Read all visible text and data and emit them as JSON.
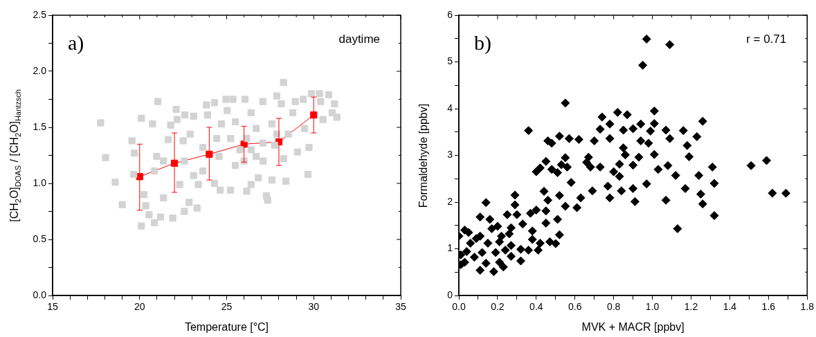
{
  "chart_data": [
    {
      "type": "scatter",
      "title": "a)",
      "xlabel": "Temperature [°C]",
      "ylabel": "[CH$_{2}$O]$_{DOAS}$ / [CH$_{2}$O]$_{Hantzsch}$",
      "annotations": [
        "daytime"
      ],
      "xlim": [
        15,
        35
      ],
      "ylim": [
        0,
        2.5
      ],
      "xticks": [
        15,
        {
          "value": 16,
          "label": null
        },
        {
          "value": 17,
          "label": null
        },
        {
          "value": 18,
          "label": null
        },
        {
          "value": 19,
          "label": null
        },
        20,
        {
          "value": 21,
          "label": null
        },
        {
          "value": 22,
          "label": null
        },
        {
          "value": 23,
          "label": null
        },
        {
          "value": 24,
          "label": null
        },
        25,
        {
          "value": 26,
          "label": null
        },
        {
          "value": 27,
          "label": null
        },
        {
          "value": 28,
          "label": null
        },
        {
          "value": 29,
          "label": null
        },
        30,
        {
          "value": 31,
          "label": null
        },
        {
          "value": 32,
          "label": null
        },
        {
          "value": 33,
          "label": null
        },
        {
          "value": 34,
          "label": null
        },
        35
      ],
      "yticks": [
        {
          "value": 0,
          "label": "0.0"
        },
        {
          "value": 0.25,
          "label": null
        },
        {
          "value": 0.5,
          "label": "0.5"
        },
        {
          "value": 0.75,
          "label": null
        },
        {
          "value": 1,
          "label": "1.0"
        },
        {
          "value": 1.25,
          "label": null
        },
        {
          "value": 1.5,
          "label": "1.5"
        },
        {
          "value": 1.75,
          "label": null
        },
        {
          "value": 2,
          "label": "2.0"
        },
        {
          "value": 2.25,
          "label": null
        },
        {
          "value": 2.5,
          "label": "2.5"
        }
      ],
      "grid": false,
      "legend": false,
      "series": [
        {
          "type": "scatter",
          "marker": "square",
          "color": "#d3d3d3",
          "x": [
            17.76,
            18.04,
            18.6,
            19.0,
            19.56,
            19.7,
            19.66,
            20.1,
            20.1,
            20.54,
            20.85,
            20.35,
            20.25,
            20.74,
            21.05,
            20.98,
            21.2,
            21.37,
            21.9,
            21.78,
            21.64,
            22.1,
            22.15,
            22.3,
            22.6,
            22.57,
            22.84,
            23.1,
            23.3,
            23.37,
            22.9,
            22.5,
            23.63,
            23.84,
            23.9,
            24.3,
            24.43,
            24.56,
            24.3,
            24.63,
            24.96,
            25.36,
            25.22,
            25.03,
            25.5,
            25.23,
            25.5,
            25.76,
            26.05,
            26.15,
            26.4,
            26.4,
            26.7,
            26.82,
            26.7,
            27.08,
            27.08,
            27.28,
            27.35,
            27.6,
            27.88,
            28.27,
            28.14,
            27.6,
            28.27,
            28.4,
            28.54,
            28.94,
            28.8,
            29.07,
            29.47,
            29.67,
            29.73,
            29.4,
            29.87,
            30.33,
            30.86,
            30.4,
            30.53,
            31.2,
            31.06,
            31.33,
            26.15,
            27.75,
            27.1,
            26.0,
            24.7,
            23.63,
            22.57,
            21.37,
            20.85,
            23.1,
            27.88,
            26.4
          ],
          "values": [
            1.54,
            1.23,
            1.01,
            0.81,
            1.38,
            1.27,
            1.08,
            1.58,
            0.62,
            0.72,
            0.65,
            0.8,
            0.9,
            1.53,
            1.73,
            1.24,
            0.7,
            0.87,
            0.69,
            1.52,
            1.39,
            1.66,
            1.57,
            0.99,
            1.61,
            0.75,
            0.83,
            1.6,
            0.78,
            0.99,
            1.44,
            1.38,
            1.32,
            1.7,
            1.61,
            1.72,
            1.4,
            1.24,
            1.0,
            0.94,
            1.75,
            1.75,
            0.94,
            1.65,
            1.55,
            1.4,
            1.16,
            1.3,
            1.75,
            0.93,
            0.99,
            1.63,
            1.49,
            1.05,
            1.24,
            1.73,
            1.36,
            0.89,
            0.85,
            1.03,
            1.78,
            1.9,
            1.71,
            1.53,
            1.22,
            1.02,
            1.44,
            1.73,
            1.63,
            1.28,
            1.49,
            1.08,
            1.32,
            1.75,
            1.8,
            1.8,
            1.79,
            1.73,
            1.57,
            1.71,
            1.63,
            1.59,
            1.4,
            1.34,
            1.2,
            1.2,
            1.53,
            1.11,
            1.2,
            1.2,
            1.11,
            1.07,
            1.44,
            1.3
          ]
        },
        {
          "type": "line",
          "marker": "square",
          "color": "#ff0000",
          "x": [
            20,
            22,
            24,
            26,
            28,
            30
          ],
          "values": [
            1.06,
            1.18,
            1.26,
            1.35,
            1.37,
            1.61
          ],
          "errors": [
            [
              0.76,
              1.35
            ],
            [
              0.92,
              1.45
            ],
            [
              1.03,
              1.5
            ],
            [
              1.19,
              1.51
            ],
            [
              1.16,
              1.58
            ],
            [
              1.45,
              1.77
            ]
          ]
        }
      ]
    },
    {
      "type": "scatter",
      "title": "b)",
      "xlabel": "MVK + MACR [ppbv]",
      "ylabel": "Formaldehyde [ppbv]",
      "annotations": [
        "r = 0.71"
      ],
      "xlim": [
        0,
        1.8
      ],
      "ylim": [
        0,
        6
      ],
      "xticks": [
        {
          "value": 0,
          "label": "0.0"
        },
        {
          "value": 0.1,
          "label": null
        },
        {
          "value": 0.2,
          "label": "0.2"
        },
        {
          "value": 0.3,
          "label": null
        },
        {
          "value": 0.4,
          "label": "0.4"
        },
        {
          "value": 0.5,
          "label": null
        },
        {
          "value": 0.6,
          "label": "0.6"
        },
        {
          "value": 0.7,
          "label": null
        },
        {
          "value": 0.8,
          "label": "0.8"
        },
        {
          "value": 0.9,
          "label": null
        },
        {
          "value": 1,
          "label": "1.0"
        },
        {
          "value": 1.1,
          "label": null
        },
        {
          "value": 1.2,
          "label": "1.2"
        },
        {
          "value": 1.3,
          "label": null
        },
        {
          "value": 1.4,
          "label": "1.4"
        },
        {
          "value": 1.5,
          "label": null
        },
        {
          "value": 1.6,
          "label": "1.6"
        },
        {
          "value": 1.7,
          "label": null
        },
        {
          "value": 1.8,
          "label": "1.8"
        }
      ],
      "yticks": [
        0,
        {
          "value": 0.5,
          "label": null
        },
        1,
        {
          "value": 1.5,
          "label": null
        },
        2,
        {
          "value": 2.5,
          "label": null
        },
        3,
        {
          "value": 3.5,
          "label": null
        },
        4,
        {
          "value": 4.5,
          "label": null
        },
        5,
        {
          "value": 5.5,
          "label": null
        },
        6
      ],
      "grid": false,
      "legend": false,
      "marker": "diamond",
      "color": "#000000",
      "x": [
        0.97,
        1.09,
        0.95,
        0.55,
        0.36,
        1.26,
        1.51,
        1.59,
        1.62,
        1.69,
        1.32,
        1.13,
        1.32,
        1.31,
        1.26,
        1.25,
        1.24,
        1.23,
        1.16,
        1.18,
        1.19,
        1.17,
        1.07,
        1.12,
        1.08,
        1.07,
        1.01,
        1.01,
        0.99,
        0.94,
        0.9,
        0.98,
        1.01,
        1.03,
        0.97,
        0.91,
        0.9,
        0.93,
        0.9,
        0.87,
        0.82,
        0.85,
        0.85,
        0.86,
        0.83,
        0.83,
        0.84,
        0.78,
        0.77,
        0.78,
        0.78,
        0.74,
        0.73,
        0.7,
        0.68,
        0.67,
        0.69,
        0.63,
        0.61,
        0.62,
        0.58,
        0.56,
        0.55,
        0.53,
        0.57,
        0.52,
        0.55,
        0.52,
        0.51,
        0.48,
        0.46,
        0.48,
        0.45,
        0.4,
        0.42,
        0.44,
        0.46,
        0.45,
        0.45,
        0.51,
        0.52,
        0.47,
        0.5,
        0.41,
        0.42,
        0.4,
        0.38,
        0.38,
        0.36,
        0.32,
        0.32,
        0.33,
        0.37,
        0.29,
        0.29,
        0.3,
        0.27,
        0.25,
        0.27,
        0.27,
        0.23,
        0.24,
        0.22,
        0.2,
        0.17,
        0.18,
        0.15,
        0.16,
        0.14,
        0.11,
        0.11,
        0.14,
        0.11,
        0.12,
        0.06,
        0.08,
        0.03,
        0.05,
        0.04,
        0.03,
        0.01,
        0.0,
        0.01,
        0.09,
        0.19,
        0.21,
        0.26,
        0.21,
        0.66,
        0.73,
        0.8,
        0.94,
        1.09
      ],
      "values": [
        5.49,
        5.37,
        4.93,
        4.12,
        3.53,
        3.73,
        2.78,
        2.89,
        2.19,
        2.19,
        1.71,
        1.43,
        2.4,
        2.75,
        1.96,
        2.17,
        2.57,
        3.4,
        3.53,
        3.21,
        2.97,
        2.29,
        2.04,
        2.57,
        2.78,
        3.54,
        3.95,
        3.68,
        3.52,
        3.67,
        3.57,
        3.26,
        3.02,
        2.7,
        2.39,
        2.01,
        2.29,
        2.96,
        2.79,
        3.87,
        3.92,
        3.54,
        3.16,
        3.01,
        2.81,
        2.55,
        2.24,
        2.09,
        2.34,
        3.36,
        3.67,
        3.82,
        3.56,
        3.31,
        2.75,
        2.96,
        2.24,
        2.09,
        1.88,
        3.34,
        2.42,
        2.75,
        2.95,
        2.8,
        3.36,
        3.41,
        1.91,
        2.14,
        2.63,
        2.7,
        3.31,
        3.26,
        2.87,
        2.65,
        2.73,
        2.23,
        2.04,
        1.81,
        1.55,
        1.63,
        1.3,
        1.15,
        1.11,
        0.97,
        1.12,
        1.83,
        1.38,
        1.2,
        0.97,
        0.74,
        0.99,
        1.53,
        1.76,
        2.15,
        1.94,
        1.73,
        1.45,
        1.73,
        1.07,
        0.84,
        0.61,
        0.97,
        1.27,
        1.48,
        1.43,
        0.51,
        1.12,
        1.63,
        1.99,
        1.68,
        0.54,
        0.69,
        1.27,
        0.92,
        1.12,
        0.82,
        1.4,
        1.35,
        0.94,
        0.71,
        0.66,
        1.27,
        0.87,
        1.22,
        0.92,
        0.71,
        1.32,
        1.15,
        2.85,
        2.75,
        2.65,
        3.31,
        3.36
      ]
    }
  ]
}
